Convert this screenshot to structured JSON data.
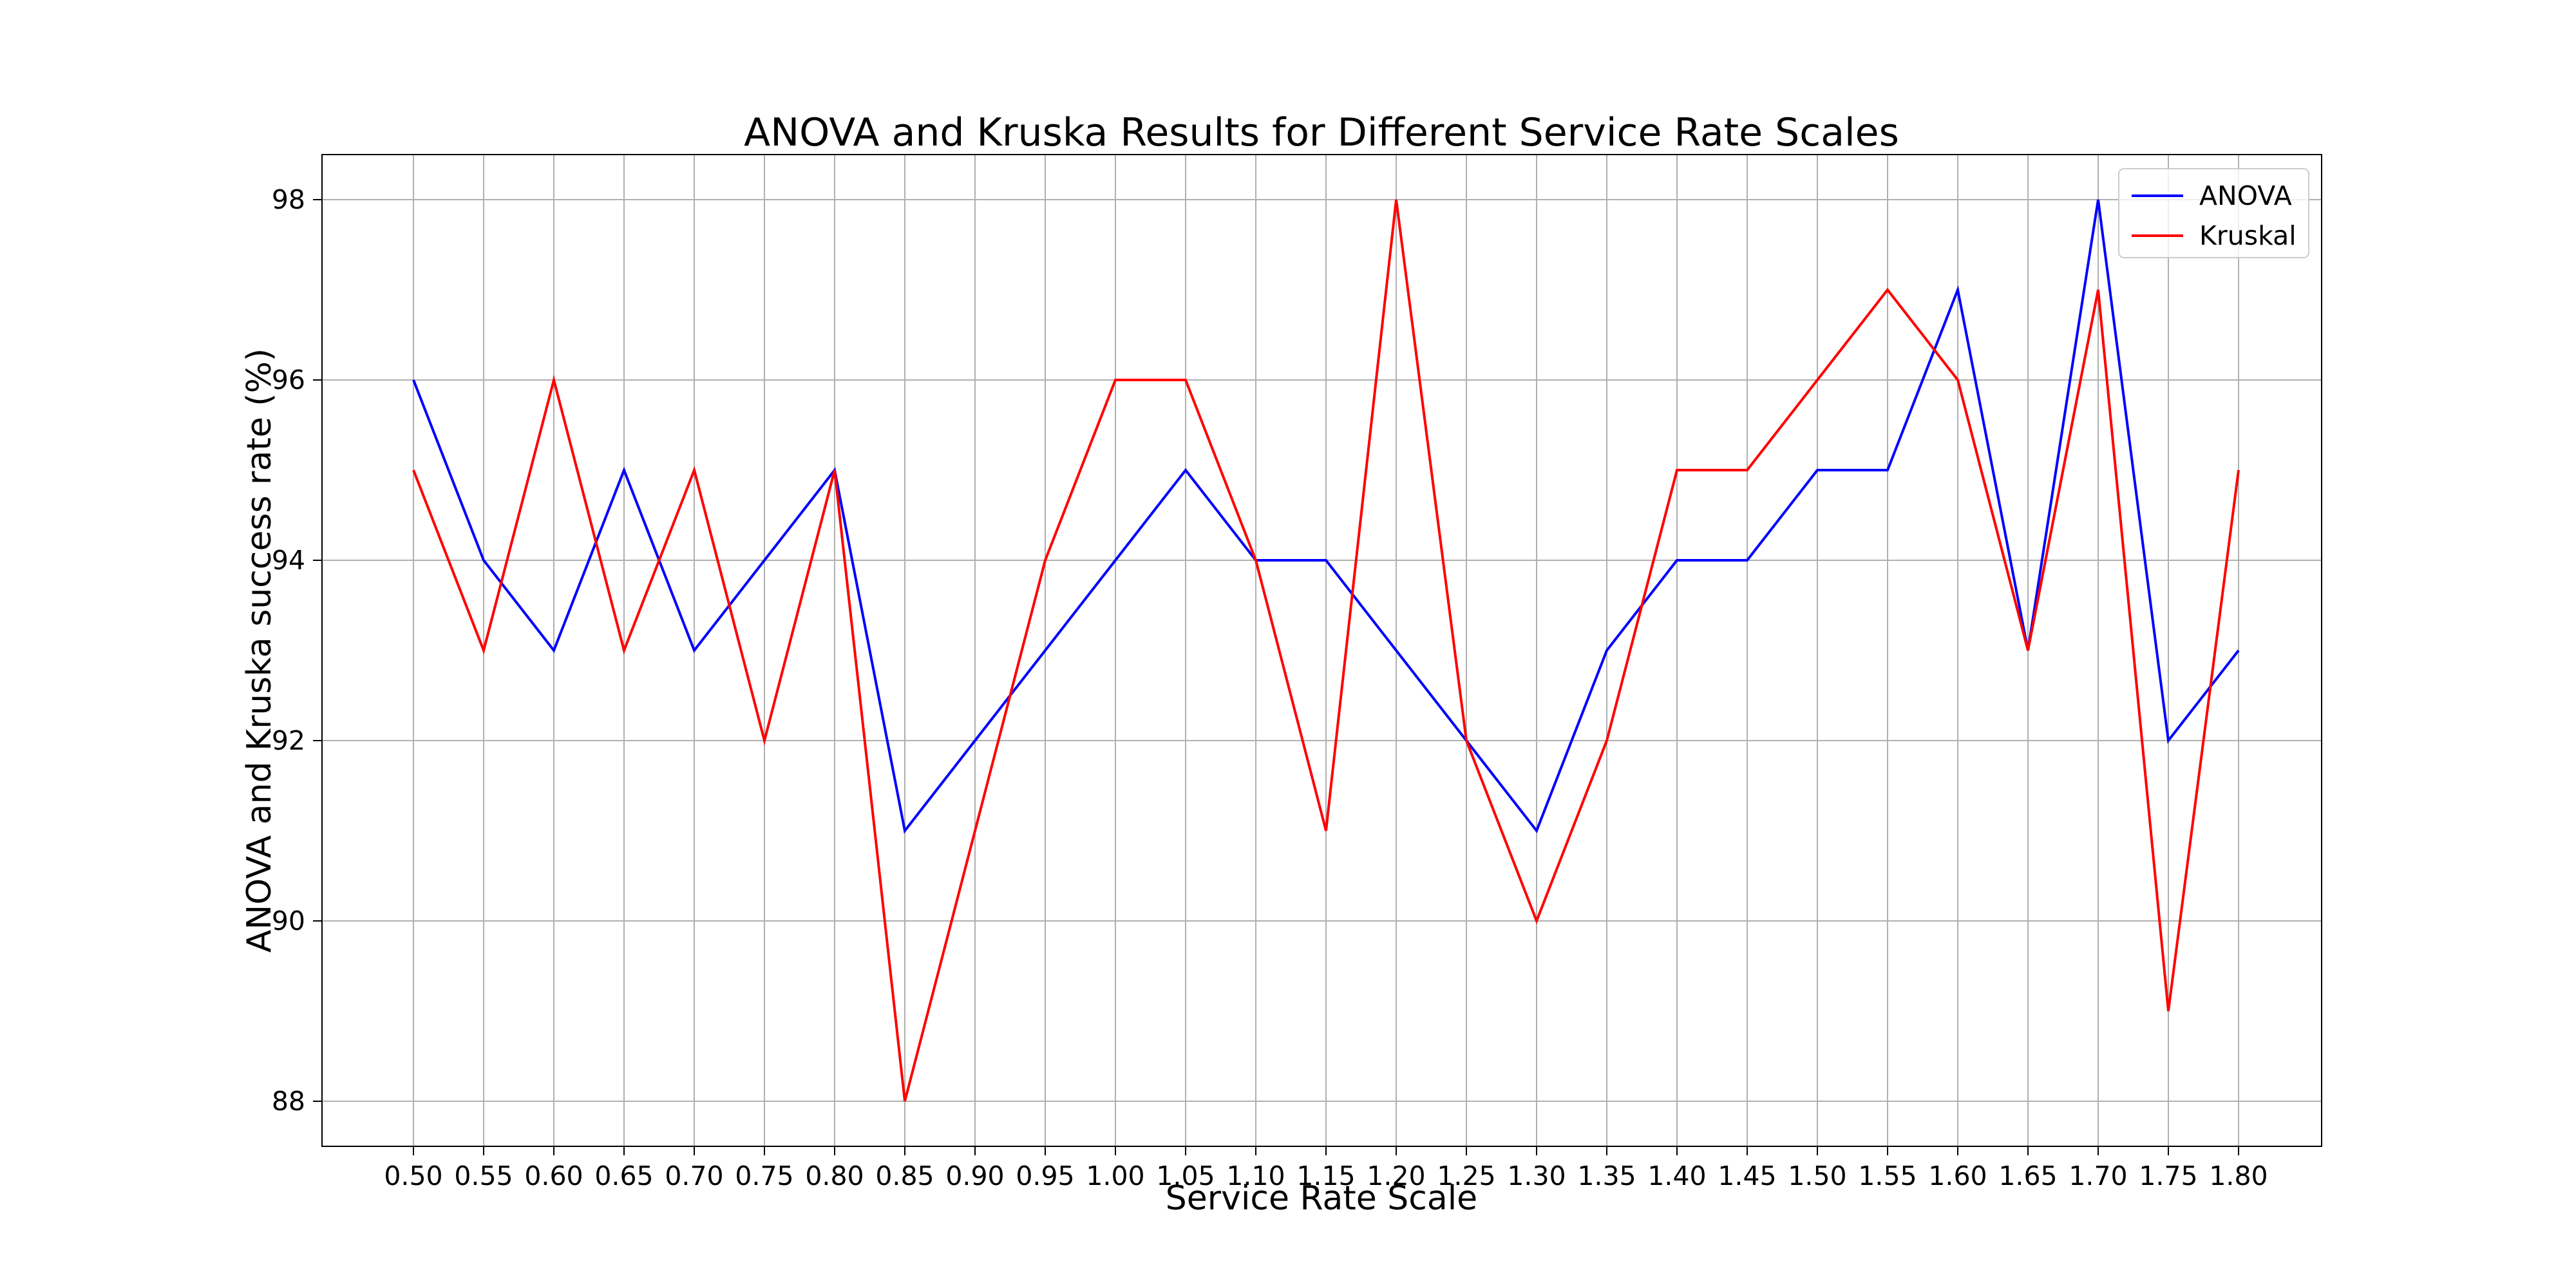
{
  "chart_data": {
    "type": "line",
    "title": "ANOVA and Kruska Results for Different Service Rate Scales",
    "xlabel": "Service Rate Scale",
    "ylabel": "ANOVA and Kruska success rate (%)",
    "x": [
      "0.50",
      "0.55",
      "0.60",
      "0.65",
      "0.70",
      "0.75",
      "0.80",
      "0.85",
      "0.90",
      "0.95",
      "1.00",
      "1.05",
      "1.10",
      "1.15",
      "1.20",
      "1.25",
      "1.30",
      "1.35",
      "1.40",
      "1.45",
      "1.50",
      "1.55",
      "1.60",
      "1.65",
      "1.70",
      "1.75",
      "1.80"
    ],
    "yticks": [
      88,
      90,
      92,
      94,
      96,
      98
    ],
    "ylim": [
      87.5,
      98.5
    ],
    "grid": true,
    "legend_position": "top-right",
    "series": [
      {
        "name": "ANOVA",
        "color": "#0000ff",
        "values": [
          96,
          94,
          93,
          95,
          93,
          94,
          95,
          91,
          92,
          93,
          94,
          95,
          94,
          94,
          93,
          92,
          91,
          93,
          94,
          94,
          95,
          95,
          97,
          93,
          98,
          92,
          93
        ]
      },
      {
        "name": "Kruskal",
        "color": "#ff0000",
        "values": [
          95,
          93,
          96,
          93,
          95,
          92,
          95,
          88,
          91,
          94,
          96,
          96,
          94,
          91,
          98,
          92,
          90,
          92,
          95,
          95,
          96,
          97,
          96,
          93,
          97,
          89,
          95
        ]
      }
    ]
  }
}
